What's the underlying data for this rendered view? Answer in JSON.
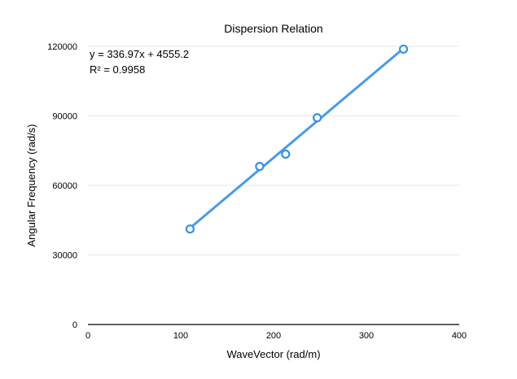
{
  "chart_data": {
    "type": "scatter",
    "title": "Dispersion Relation",
    "xlabel": "WaveVector (rad/m)",
    "ylabel": "Angular Frequency (rad/s)",
    "xlim": [
      0,
      400
    ],
    "ylim": [
      0,
      120000
    ],
    "x_ticks": [
      0,
      100,
      200,
      300,
      400
    ],
    "y_ticks": [
      0,
      30000,
      60000,
      90000,
      120000
    ],
    "x_tick_labels": [
      "0",
      "100",
      "200",
      "300",
      "400"
    ],
    "y_tick_labels": [
      "0",
      "30000",
      "60000",
      "90000",
      "120000"
    ],
    "grid": "horizontal",
    "series": [
      {
        "x": [
          110,
          185,
          213,
          247,
          340
        ],
        "y": [
          41200,
          68200,
          73500,
          89200,
          118800
        ],
        "color": "#3d8fe0",
        "marker": "open-circle"
      }
    ],
    "trendline": {
      "type": "linear",
      "slope": 336.97,
      "intercept": 4555.2,
      "x_range": [
        110,
        340
      ],
      "color": "#4a9ae8",
      "equation": "y = 336.97x + 4555.2",
      "r_squared": "R² = 0.9958"
    }
  }
}
